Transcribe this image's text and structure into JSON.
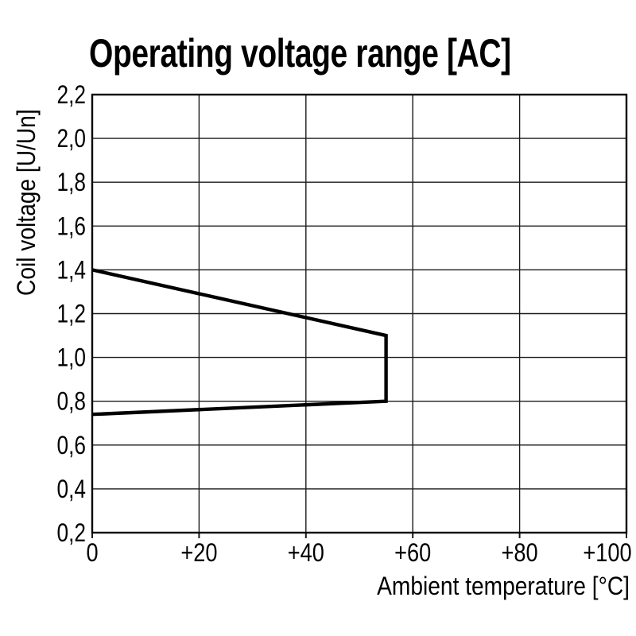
{
  "page": {
    "background_color": "#ffffff",
    "text_color": "#000000"
  },
  "chart_data": {
    "type": "line",
    "title": "Operating voltage range [AC]",
    "xlabel": "Ambient temperature [°C]",
    "ylabel": "Coil voltage [U/Un]",
    "xlim": [
      0,
      100
    ],
    "ylim": [
      0.2,
      2.2
    ],
    "grid": true,
    "decimal_separator": ",",
    "x_ticks": [
      {
        "v": 0,
        "label": "0"
      },
      {
        "v": 20,
        "label": "+20"
      },
      {
        "v": 40,
        "label": "+40"
      },
      {
        "v": 60,
        "label": "+60"
      },
      {
        "v": 80,
        "label": "+80"
      },
      {
        "v": 100,
        "label": "+100"
      }
    ],
    "y_ticks": [
      {
        "v": 2.2,
        "label": "2,2"
      },
      {
        "v": 2.0,
        "label": "2,0"
      },
      {
        "v": 1.8,
        "label": "1,8"
      },
      {
        "v": 1.6,
        "label": "1,6"
      },
      {
        "v": 1.4,
        "label": "1,4"
      },
      {
        "v": 1.2,
        "label": "1,2"
      },
      {
        "v": 1.0,
        "label": "1,0"
      },
      {
        "v": 0.8,
        "label": "0,8"
      },
      {
        "v": 0.6,
        "label": "0,6"
      },
      {
        "v": 0.4,
        "label": "0,4"
      },
      {
        "v": 0.2,
        "label": "0,2"
      }
    ],
    "series": [
      {
        "name": "operating-range-boundary",
        "color": "#000000",
        "points": [
          {
            "x": 0,
            "y": 1.4
          },
          {
            "x": 55,
            "y": 1.1
          },
          {
            "x": 55,
            "y": 0.8
          },
          {
            "x": 0,
            "y": 0.74
          }
        ]
      }
    ],
    "line_color": "#000000",
    "grid_color": "#1a1a1a"
  }
}
